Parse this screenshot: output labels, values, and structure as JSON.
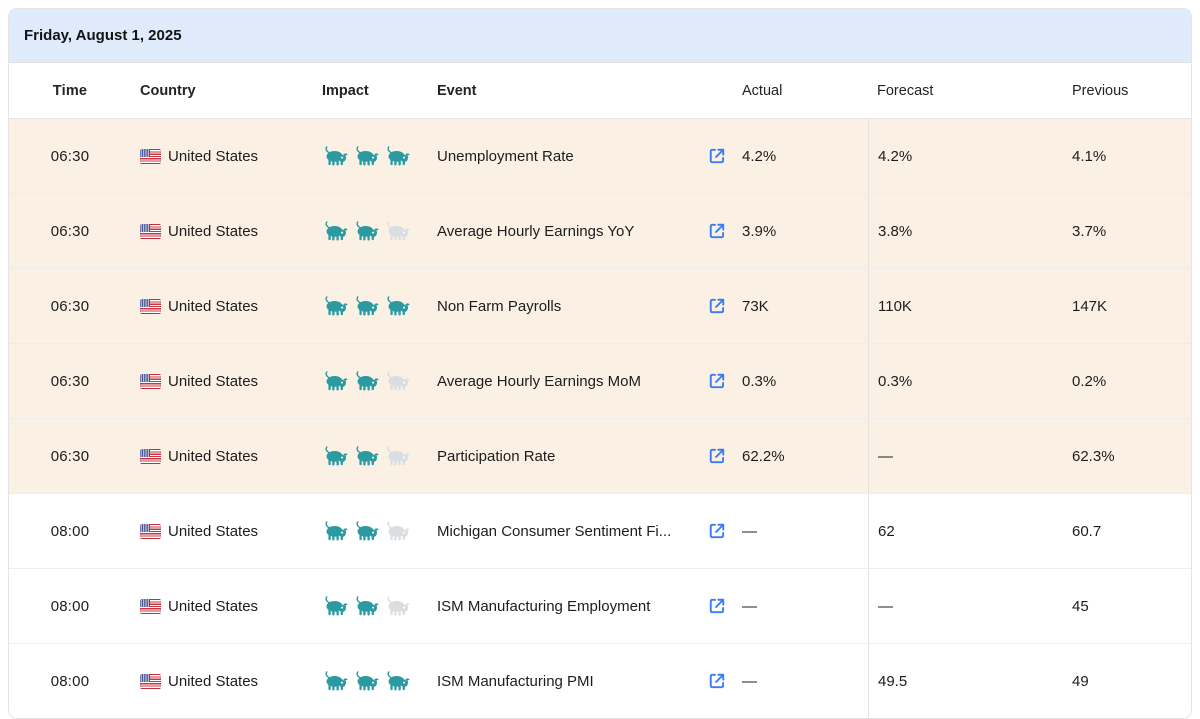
{
  "date_header": "Friday, August 1, 2025",
  "columns": {
    "time": "Time",
    "country": "Country",
    "impact": "Impact",
    "event": "Event",
    "actual": "Actual",
    "forecast": "Forecast",
    "previous": "Previous"
  },
  "colors": {
    "date_bar_bg": "#dfeafa",
    "highlight_row_bg": "#faf1e4",
    "impact_active": "#2b9aa1",
    "impact_inactive": "#dbdee1",
    "link_icon": "#3c7bf6"
  },
  "rows": [
    {
      "time": "06:30",
      "country": "United States",
      "impact_filled": 3,
      "impact_total": 3,
      "event": "Unemployment Rate",
      "actual": "4.2%",
      "forecast": "4.2%",
      "previous": "4.1%",
      "highlighted": true
    },
    {
      "time": "06:30",
      "country": "United States",
      "impact_filled": 2,
      "impact_total": 3,
      "event": "Average Hourly Earnings YoY",
      "actual": "3.9%",
      "forecast": "3.8%",
      "previous": "3.7%",
      "highlighted": true
    },
    {
      "time": "06:30",
      "country": "United States",
      "impact_filled": 3,
      "impact_total": 3,
      "event": "Non Farm Payrolls",
      "actual": "73K",
      "forecast": "110K",
      "previous": "147K",
      "highlighted": true
    },
    {
      "time": "06:30",
      "country": "United States",
      "impact_filled": 2,
      "impact_total": 3,
      "event": "Average Hourly Earnings MoM",
      "actual": "0.3%",
      "forecast": "0.3%",
      "previous": "0.2%",
      "highlighted": true
    },
    {
      "time": "06:30",
      "country": "United States",
      "impact_filled": 2,
      "impact_total": 3,
      "event": "Participation Rate",
      "actual": "62.2%",
      "forecast": "—",
      "previous": "62.3%",
      "highlighted": true
    },
    {
      "time": "08:00",
      "country": "United States",
      "impact_filled": 2,
      "impact_total": 3,
      "event": "Michigan Consumer Sentiment Fi...",
      "actual": "—",
      "forecast": "62",
      "previous": "60.7",
      "highlighted": false
    },
    {
      "time": "08:00",
      "country": "United States",
      "impact_filled": 2,
      "impact_total": 3,
      "event": "ISM Manufacturing Employment",
      "actual": "—",
      "forecast": "—",
      "previous": "45",
      "highlighted": false
    },
    {
      "time": "08:00",
      "country": "United States",
      "impact_filled": 3,
      "impact_total": 3,
      "event": "ISM Manufacturing PMI",
      "actual": "—",
      "forecast": "49.5",
      "previous": "49",
      "highlighted": false
    }
  ]
}
